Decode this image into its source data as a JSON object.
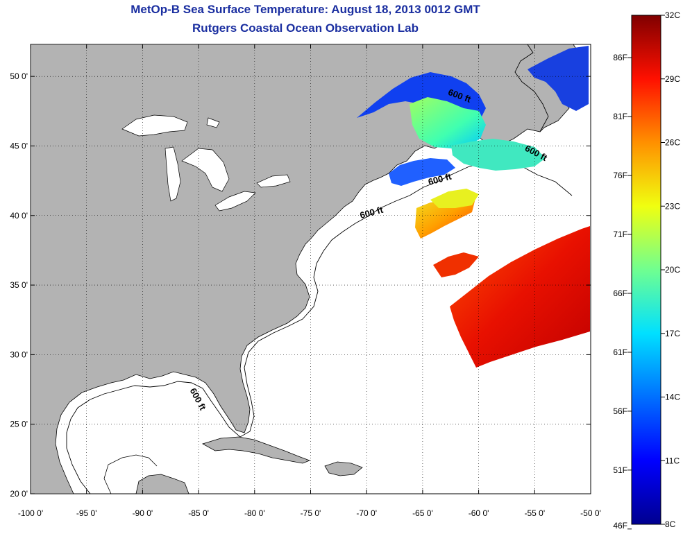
{
  "title": {
    "line1": "MetOp-B Sea Surface Temperature:  August 18, 2013 0012 GMT",
    "line2": "Rutgers Coastal Ocean Observation Lab"
  },
  "map": {
    "lon_range": [
      -100,
      -50
    ],
    "lat_range": [
      20,
      52.3
    ],
    "lon_ticks": [
      {
        "value": -100,
        "label": "-100 0'"
      },
      {
        "value": -95,
        "label": "-95 0'"
      },
      {
        "value": -90,
        "label": "-90 0'"
      },
      {
        "value": -85,
        "label": "-85 0'"
      },
      {
        "value": -80,
        "label": "-80 0'"
      },
      {
        "value": -75,
        "label": "-75 0'"
      },
      {
        "value": -70,
        "label": "-70 0'"
      },
      {
        "value": -65,
        "label": "-65 0'"
      },
      {
        "value": -60,
        "label": "-60 0'"
      },
      {
        "value": -55,
        "label": "-55 0'"
      },
      {
        "value": -50,
        "label": "-50 0'"
      }
    ],
    "lat_ticks": [
      {
        "value": 20,
        "label": "20 0'"
      },
      {
        "value": 25,
        "label": "25 0'"
      },
      {
        "value": 30,
        "label": "30 0'"
      },
      {
        "value": 35,
        "label": "35 0'"
      },
      {
        "value": 40,
        "label": "40 0'"
      },
      {
        "value": 45,
        "label": "45 0'"
      },
      {
        "value": 50,
        "label": "50 0'"
      }
    ],
    "land_color": "#b3b3b3",
    "ocean_color": "#ffffff",
    "grid": "dotted",
    "contour_labels": [
      {
        "text": "600 ft",
        "lon": -61.8,
        "lat": 48.4,
        "angle": 20
      },
      {
        "text": "600 ft",
        "lon": -55.0,
        "lat": 44.3,
        "angle": 28
      },
      {
        "text": "600 ft",
        "lon": -63.4,
        "lat": 42.4,
        "angle": -15
      },
      {
        "text": "600 ft",
        "lon": -69.5,
        "lat": 40.0,
        "angle": -15
      },
      {
        "text": "600 ft",
        "lon": -85.3,
        "lat": 26.7,
        "angle": 62
      }
    ]
  },
  "colorbar": {
    "left_labels": [
      {
        "value": 86,
        "label": "86F"
      },
      {
        "value": 81,
        "label": "81F"
      },
      {
        "value": 76,
        "label": "76F"
      },
      {
        "value": 71,
        "label": "71F"
      },
      {
        "value": 66,
        "label": "66F"
      },
      {
        "value": 61,
        "label": "61F"
      },
      {
        "value": 56,
        "label": "56F"
      },
      {
        "value": 51,
        "label": "51F"
      },
      {
        "value": 46,
        "label": "46F"
      }
    ],
    "right_labels": [
      {
        "value": 32,
        "label": "32C"
      },
      {
        "value": 29,
        "label": "29C"
      },
      {
        "value": 26,
        "label": "26C"
      },
      {
        "value": 23,
        "label": "23C"
      },
      {
        "value": 20,
        "label": "20C"
      },
      {
        "value": 17,
        "label": "17C"
      },
      {
        "value": 14,
        "label": "14C"
      },
      {
        "value": 11,
        "label": "11C"
      },
      {
        "value": 8,
        "label": "8C"
      }
    ],
    "range_c": [
      8,
      32
    ],
    "colormap": [
      "#00008f",
      "#0000ff",
      "#0080ff",
      "#00ffff",
      "#80ff80",
      "#ffff00",
      "#ff8000",
      "#ff0000",
      "#800000"
    ]
  }
}
